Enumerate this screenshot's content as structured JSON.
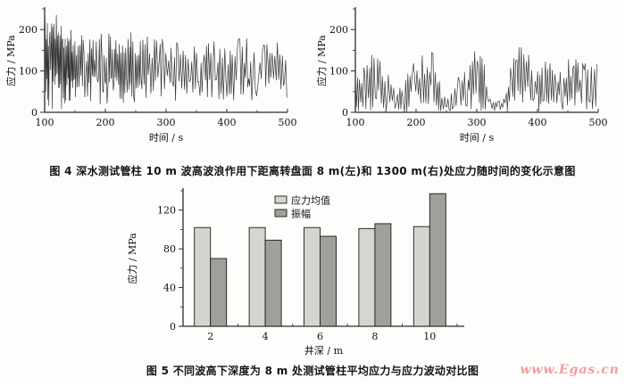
{
  "page": {
    "background": "#fdfdfb"
  },
  "figure4": {
    "caption": "图 4   深水测试管柱 10 m 波高波浪作用下距离转盘面 8 m(左)和 1300 m(右)处应力随时间的变化示意图"
  },
  "figure5": {
    "caption": "图 5   不同波高下深度为 8 m 处测试管柱平均应力与应力波动对比图",
    "watermark": "www.Egas.cn",
    "watermark_color": "#f49b9d"
  },
  "chart_data": [
    {
      "type": "line",
      "name": "stress-time-8m",
      "position_label": "8 m",
      "title": "",
      "xlabel": "时间 / s",
      "ylabel": "应力 / MPa",
      "xlim": [
        100,
        500
      ],
      "ylim": [
        0,
        250
      ],
      "x_major_ticks": [
        100,
        200,
        300,
        400,
        500
      ],
      "x_minor_ticks": [
        150,
        250,
        350,
        450
      ],
      "y_major_ticks": [
        0,
        100,
        200
      ],
      "y_minor_ticks": [
        50,
        150,
        250
      ],
      "grid": false,
      "line_color": "#353535",
      "series_note": "random stress oscillation, mean ~100 MPa; extreme spikes 0-255 MPa for t=100-140 s, then ~20-195 MPa",
      "envelope": [
        [
          100,
          0,
          255
        ],
        [
          112,
          0,
          252
        ],
        [
          122,
          4,
          245
        ],
        [
          135,
          10,
          228
        ],
        [
          148,
          18,
          205
        ],
        [
          165,
          18,
          196
        ],
        [
          210,
          14,
          196
        ],
        [
          255,
          16,
          192
        ],
        [
          270,
          28,
          182
        ],
        [
          300,
          30,
          176
        ],
        [
          340,
          24,
          166
        ],
        [
          380,
          14,
          176
        ],
        [
          420,
          28,
          182
        ],
        [
          460,
          30,
          172
        ],
        [
          500,
          34,
          166
        ]
      ],
      "steps": [
        [
          100,
          0.9
        ],
        [
          150,
          1.3
        ],
        [
          260,
          1.9
        ]
      ],
      "seed": 7
    },
    {
      "type": "line",
      "name": "stress-time-1300m",
      "position_label": "1300 m",
      "title": "",
      "xlabel": "时间 / s",
      "ylabel": "应力 / MPa",
      "xlim": [
        100,
        500
      ],
      "ylim": [
        0,
        250
      ],
      "x_major_ticks": [
        100,
        200,
        300,
        400,
        500
      ],
      "x_minor_ticks": [
        150,
        250,
        350,
        450
      ],
      "y_major_ticks": [
        0,
        100,
        200
      ],
      "y_minor_ticks": [
        50,
        150,
        250
      ],
      "grid": false,
      "line_color": "#3a3a3a",
      "series_note": "wave-grouped stress oscillation 0-175 MPa; peaks ~175 MPa near t=230, 375, 490 s; calm near t=170, 250, 335 s",
      "envelope": [
        [
          100,
          4,
          90
        ],
        [
          115,
          0,
          125
        ],
        [
          130,
          0,
          145
        ],
        [
          145,
          0,
          138
        ],
        [
          160,
          4,
          75
        ],
        [
          175,
          0,
          62
        ],
        [
          190,
          0,
          118
        ],
        [
          205,
          0,
          132
        ],
        [
          220,
          5,
          160
        ],
        [
          230,
          8,
          175
        ],
        [
          242,
          0,
          55
        ],
        [
          252,
          0,
          35
        ],
        [
          265,
          4,
          70
        ],
        [
          280,
          0,
          120
        ],
        [
          295,
          5,
          150
        ],
        [
          310,
          0,
          142
        ],
        [
          325,
          0,
          35
        ],
        [
          342,
          0,
          30
        ],
        [
          355,
          4,
          112
        ],
        [
          372,
          8,
          172
        ],
        [
          382,
          5,
          162
        ],
        [
          395,
          0,
          118
        ],
        [
          410,
          4,
          135
        ],
        [
          425,
          0,
          112
        ],
        [
          440,
          4,
          95
        ],
        [
          455,
          0,
          145
        ],
        [
          470,
          4,
          115
        ],
        [
          485,
          0,
          155
        ],
        [
          495,
          8,
          175
        ],
        [
          500,
          4,
          110
        ]
      ],
      "steps": [
        [
          100,
          1.9
        ]
      ],
      "seed": 29
    },
    {
      "type": "bar",
      "name": "depth-comparison",
      "title": "",
      "xlabel": "井深 / m",
      "ylabel": "应力 / MPa",
      "categories": [
        "2",
        "4",
        "6",
        "8",
        "10"
      ],
      "series": [
        {
          "name": "应力均值",
          "color": "#d5d5d0",
          "values": [
            102,
            102,
            102,
            101,
            103
          ]
        },
        {
          "name": "振幅",
          "color": "#a0a09b",
          "values": [
            70,
            89,
            93,
            106,
            137
          ]
        }
      ],
      "ylim": [
        0,
        140
      ],
      "y_major_ticks": [
        0,
        40,
        80,
        120
      ],
      "y_minor_ticks": [
        20,
        60,
        100,
        140
      ],
      "grid": false,
      "legend_position": "top-left",
      "bar_edge_color": "#1a1a1a"
    }
  ]
}
